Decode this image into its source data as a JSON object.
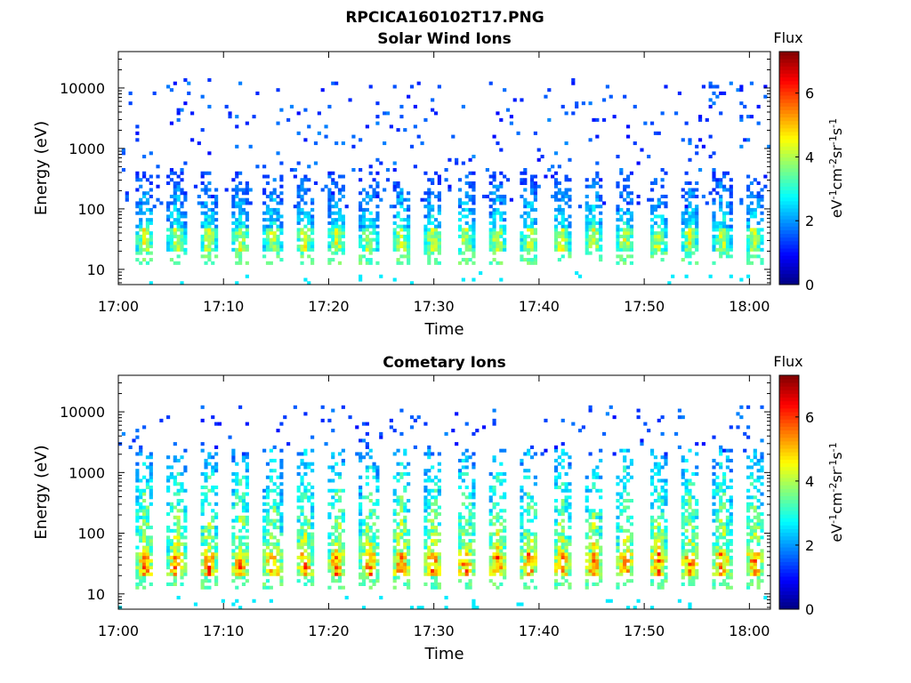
{
  "figure_title": "RPCICA160102T17.PNG",
  "chart_data": [
    {
      "type": "heatmap",
      "title": "Solar Wind Ions",
      "xlabel": "Time",
      "ylabel": "Energy (eV)",
      "x_ticks": [
        "17:00",
        "17:10",
        "17:20",
        "17:30",
        "17:40",
        "17:50",
        "18:00"
      ],
      "x_range": [
        "17:00",
        "18:02"
      ],
      "y_scale": "log",
      "y_ticks": [
        "10",
        "100",
        "1000",
        "10000"
      ],
      "y_range": [
        5.6,
        40000
      ],
      "colorbar": {
        "title": "Flux",
        "ticks": [
          "0",
          "2",
          "4",
          "6"
        ],
        "range": [
          0,
          7.3
        ],
        "colormap": "jet"
      },
      "colorbar_label_parts": [
        "eV",
        "-1",
        "cm",
        "-2",
        "sr",
        "-1",
        "s",
        "-1"
      ],
      "pulses": {
        "count": 21,
        "period_min": 3.05,
        "first_center_min": 2.5,
        "core_energy_eV": [
          20,
          50
        ],
        "core_flux": 4.6,
        "plume_max_eV": 400,
        "plume_flux": 3.2,
        "background_energy_eV": [
          100,
          15000
        ],
        "background_flux": 1.6
      }
    },
    {
      "type": "heatmap",
      "title": "Cometary Ions",
      "xlabel": "Time",
      "ylabel": "Energy (eV)",
      "x_ticks": [
        "17:00",
        "17:10",
        "17:20",
        "17:30",
        "17:40",
        "17:50",
        "18:00"
      ],
      "x_range": [
        "17:00",
        "18:02"
      ],
      "y_scale": "log",
      "y_ticks": [
        "10",
        "100",
        "1000",
        "10000"
      ],
      "y_range": [
        5.6,
        40000
      ],
      "colorbar": {
        "title": "Flux",
        "ticks": [
          "0",
          "2",
          "4",
          "6"
        ],
        "range": [
          0,
          7.3
        ],
        "colormap": "jet"
      },
      "colorbar_label_parts": [
        "eV",
        "-1",
        "cm",
        "-2",
        "sr",
        "-1",
        "s",
        "-1"
      ],
      "pulses": {
        "count": 21,
        "period_min": 3.05,
        "first_center_min": 2.5,
        "core_energy_eV": [
          20,
          50
        ],
        "core_flux": 6.0,
        "plume_max_eV": 2500,
        "plume_flux": 4.8,
        "background_energy_eV": [
          2000,
          12000
        ],
        "background_flux": 1.6
      }
    }
  ]
}
